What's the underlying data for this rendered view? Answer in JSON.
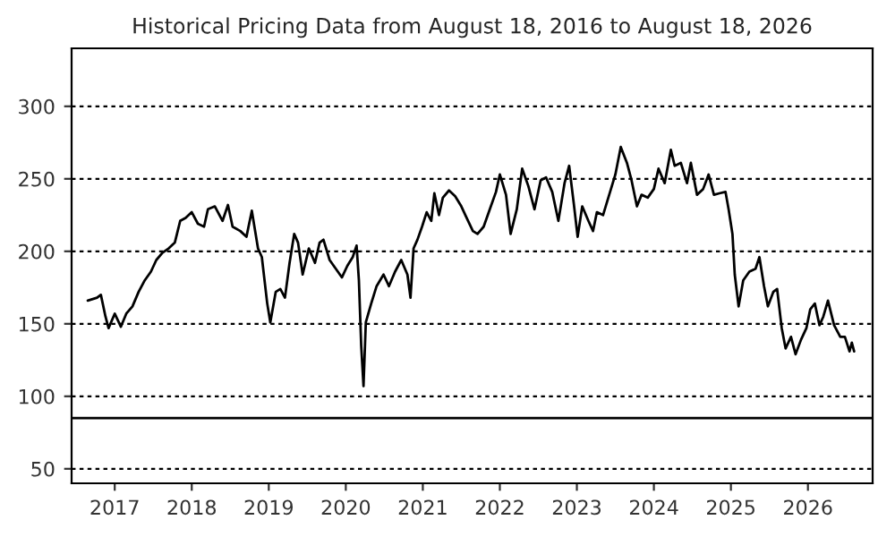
{
  "chart_data": {
    "type": "line",
    "title": "Historical Pricing Data from August 18, 2016 to August 18, 2026",
    "x": [
      2016.65,
      2016.77,
      2016.82,
      2016.88,
      2016.92,
      2017.0,
      2017.08,
      2017.15,
      2017.23,
      2017.31,
      2017.39,
      2017.47,
      2017.54,
      2017.62,
      2017.7,
      2017.78,
      2017.85,
      2017.92,
      2018.0,
      2018.08,
      2018.16,
      2018.21,
      2018.3,
      2018.4,
      2018.47,
      2018.53,
      2018.63,
      2018.71,
      2018.78,
      2018.86,
      2018.91,
      2018.98,
      2019.02,
      2019.09,
      2019.15,
      2019.21,
      2019.27,
      2019.33,
      2019.38,
      2019.44,
      2019.52,
      2019.6,
      2019.66,
      2019.71,
      2019.79,
      2019.87,
      2019.95,
      2020.02,
      2020.09,
      2020.14,
      2020.17,
      2020.2,
      2020.23,
      2020.26,
      2020.33,
      2020.4,
      2020.49,
      2020.56,
      2020.64,
      2020.72,
      2020.8,
      2020.84,
      2020.88,
      2020.93,
      2020.99,
      2021.05,
      2021.11,
      2021.15,
      2021.21,
      2021.26,
      2021.34,
      2021.42,
      2021.5,
      2021.57,
      2021.65,
      2021.71,
      2021.79,
      2021.87,
      2021.95,
      2022.0,
      2022.08,
      2022.14,
      2022.22,
      2022.29,
      2022.37,
      2022.45,
      2022.53,
      2022.6,
      2022.68,
      2022.76,
      2022.84,
      2022.9,
      2022.96,
      2023.01,
      2023.07,
      2023.15,
      2023.21,
      2023.26,
      2023.34,
      2023.42,
      2023.5,
      2023.57,
      2023.65,
      2023.71,
      2023.78,
      2023.84,
      2023.92,
      2024.0,
      2024.06,
      2024.14,
      2024.22,
      2024.27,
      2024.35,
      2024.43,
      2024.48,
      2024.56,
      2024.64,
      2024.71,
      2024.78,
      2024.85,
      2024.93,
      2024.97,
      2025.02,
      2025.05,
      2025.1,
      2025.16,
      2025.24,
      2025.32,
      2025.37,
      2025.43,
      2025.48,
      2025.55,
      2025.6,
      2025.66,
      2025.71,
      2025.78,
      2025.84,
      2025.91,
      2025.98,
      2026.03,
      2026.09,
      2026.15,
      2026.2,
      2026.26,
      2026.34,
      2026.42,
      2026.48,
      2026.54,
      2026.57,
      2026.6
    ],
    "values": [
      166,
      168,
      170,
      155,
      147,
      157,
      148,
      157,
      162,
      172,
      180,
      186,
      194,
      199,
      202,
      206,
      221,
      223,
      227,
      219,
      217,
      229,
      231,
      221,
      232,
      217,
      214,
      210,
      228,
      202,
      196,
      164,
      151,
      172,
      174,
      168,
      192,
      212,
      206,
      184,
      202,
      192,
      206,
      208,
      194,
      188,
      182,
      190,
      196,
      204,
      180,
      135,
      107,
      151,
      164,
      176,
      184,
      176,
      186,
      194,
      184,
      168,
      202,
      208,
      217,
      227,
      221,
      240,
      225,
      237,
      242,
      238,
      231,
      223,
      214,
      212,
      217,
      229,
      241,
      253,
      239,
      212,
      229,
      257,
      245,
      229,
      249,
      251,
      241,
      221,
      247,
      259,
      233,
      210,
      231,
      221,
      214,
      227,
      225,
      239,
      253,
      272,
      261,
      249,
      231,
      239,
      237,
      243,
      257,
      247,
      270,
      259,
      261,
      247,
      261,
      239,
      243,
      253,
      239,
      240,
      241,
      229,
      212,
      184,
      162,
      180,
      186,
      188,
      196,
      176,
      162,
      172,
      174,
      147,
      133,
      141,
      129,
      139,
      147,
      160,
      164,
      149,
      155,
      166,
      149,
      141,
      141,
      131,
      137,
      131
    ],
    "color": "#000000",
    "xlim": [
      2016.44,
      2026.84
    ],
    "xticks": [
      2017,
      2018,
      2019,
      2020,
      2021,
      2022,
      2023,
      2024,
      2025,
      2026
    ],
    "ylim": [
      40,
      340
    ],
    "yticks": [
      50,
      100,
      150,
      200,
      250,
      300
    ],
    "grid": "y",
    "ref_lines": [
      {
        "axis": "y",
        "value": 85,
        "color": "#000000",
        "line_style": "solid"
      }
    ],
    "marker": "none",
    "line_style": "solid"
  }
}
